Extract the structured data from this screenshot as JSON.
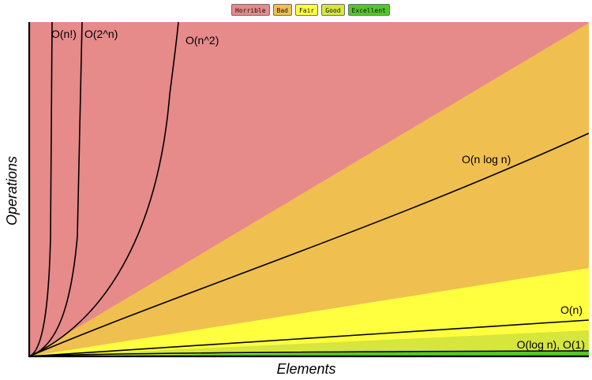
{
  "legend": [
    {
      "label": "Horrible",
      "color": "#e68a8a"
    },
    {
      "label": "Bad",
      "color": "#efbf4f"
    },
    {
      "label": "Fair",
      "color": "#ffff3f"
    },
    {
      "label": "Good",
      "color": "#d6e63c"
    },
    {
      "label": "Excellent",
      "color": "#54c62c"
    }
  ],
  "chart_data": {
    "type": "line",
    "xlabel": "Elements",
    "ylabel": "Operations",
    "grid": false,
    "legend_position": "top-center",
    "series": [
      {
        "name": "O(n!)",
        "complexity": "factorial"
      },
      {
        "name": "O(2^n)",
        "complexity": "exponential"
      },
      {
        "name": "O(n^2)",
        "complexity": "quadratic"
      },
      {
        "name": "O(n log n)",
        "complexity": "linearithmic"
      },
      {
        "name": "O(n)",
        "complexity": "linear"
      },
      {
        "name": "O(log n), O(1)",
        "complexity": "logarithmic-constant"
      }
    ],
    "regions": [
      "Horrible",
      "Bad",
      "Fair",
      "Good",
      "Excellent"
    ]
  }
}
